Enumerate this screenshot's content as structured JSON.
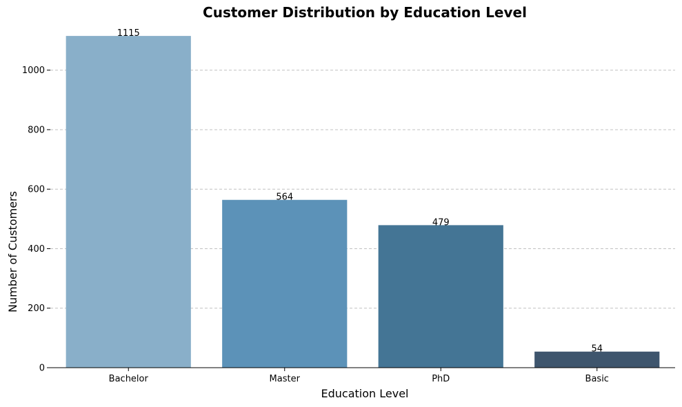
{
  "chart_data": {
    "type": "bar",
    "title": "Customer Distribution by Education Level",
    "xlabel": "Education Level",
    "ylabel": "Number of Customers",
    "categories": [
      "Bachelor",
      "Master",
      "PhD",
      "Basic"
    ],
    "values": [
      1115,
      564,
      479,
      54
    ],
    "data_labels": [
      "1115",
      "564",
      "479",
      "54"
    ],
    "colors": [
      "#89afc9",
      "#5c92b8",
      "#447595",
      "#3e556d"
    ],
    "ylim": [
      0,
      1150
    ],
    "yticks": [
      0,
      200,
      400,
      600,
      800,
      1000
    ],
    "ytick_labels": [
      "0",
      "200",
      "400",
      "600",
      "800",
      "1000"
    ],
    "grid": "y-dashed",
    "legend": "none"
  }
}
